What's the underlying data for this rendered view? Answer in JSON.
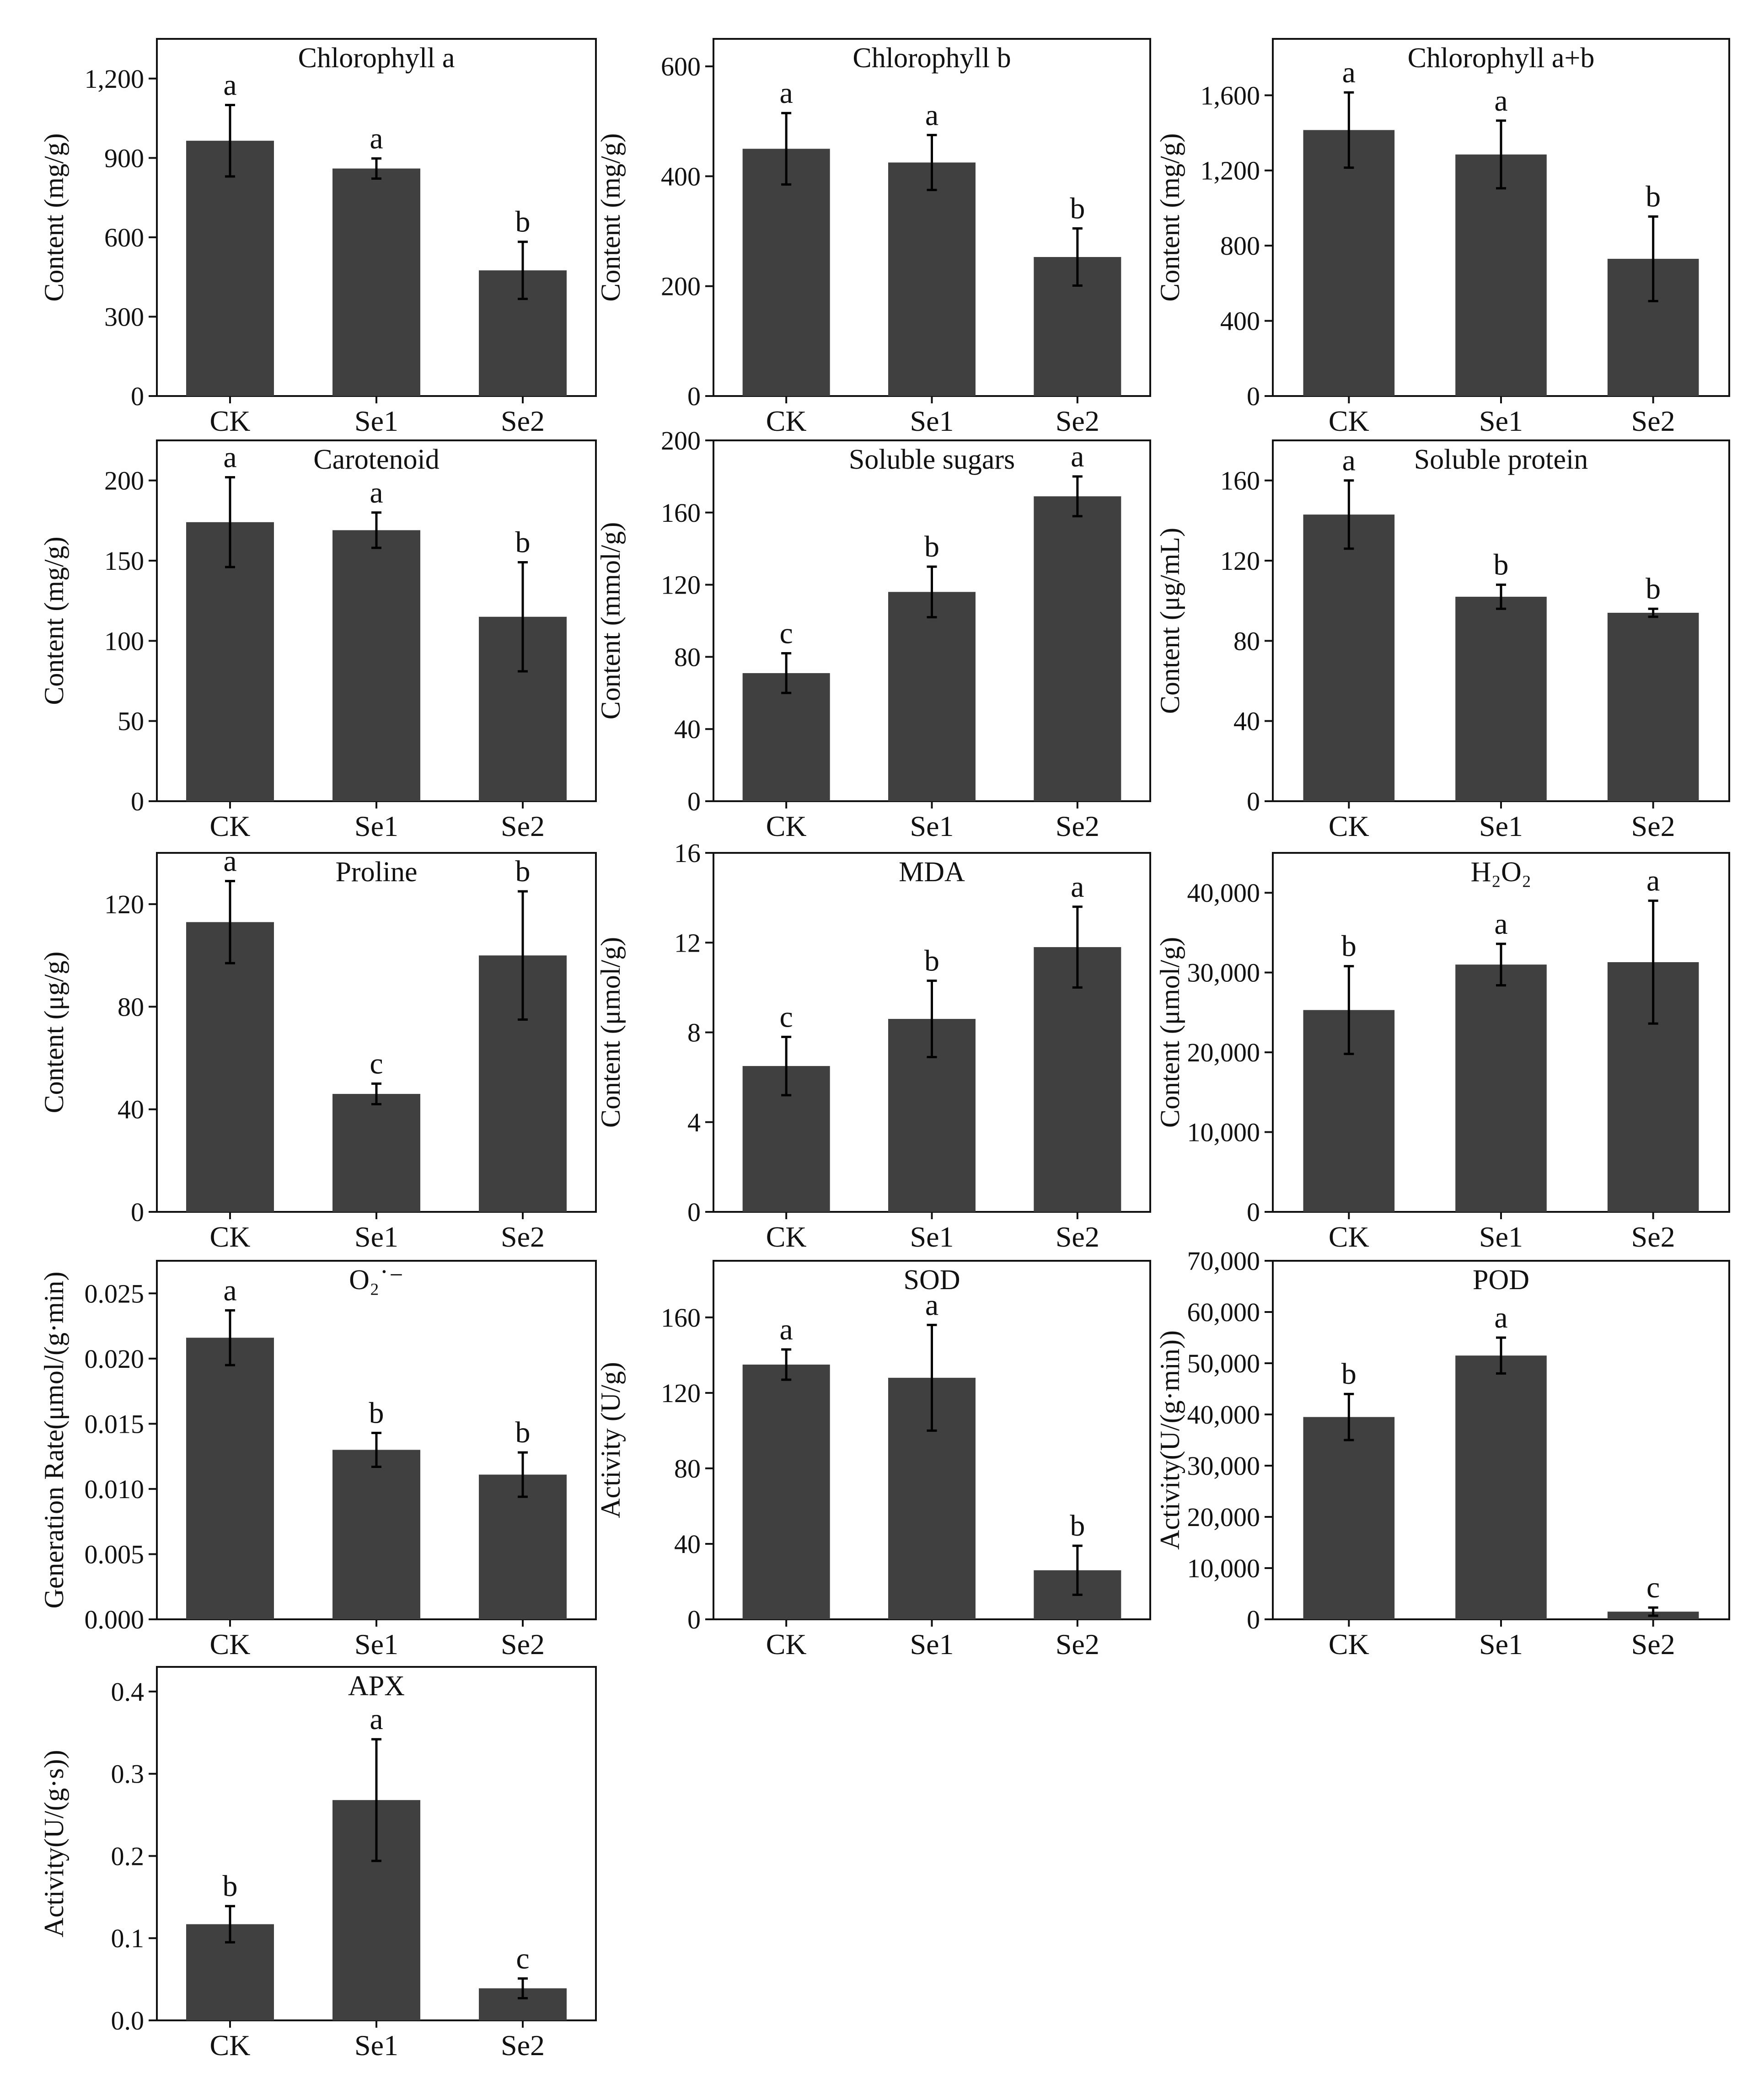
{
  "colors": {
    "bar": "#404040",
    "axis": "#111111",
    "background": "#ffffff"
  },
  "chart_data": [
    {
      "type": "bar",
      "title": "Chlorophyll a",
      "ylabel": "Content (mg/g)",
      "categories": [
        "CK",
        "Se1",
        "Se2"
      ],
      "values": [
        965,
        860,
        475
      ],
      "errors": [
        135,
        38,
        108
      ],
      "letters": [
        "a",
        "a",
        "b"
      ],
      "ylim": [
        0,
        1350
      ],
      "yticks": [
        "0",
        "300",
        "600",
        "900",
        "1,200"
      ],
      "ytick_values": [
        0,
        300,
        600,
        900,
        1200
      ]
    },
    {
      "type": "bar",
      "title": "Chlorophyll b",
      "ylabel": "Content (mg/g)",
      "categories": [
        "CK",
        "Se1",
        "Se2"
      ],
      "values": [
        450,
        425,
        253
      ],
      "errors": [
        65,
        50,
        52
      ],
      "letters": [
        "a",
        "a",
        "b"
      ],
      "ylim": [
        0,
        650
      ],
      "yticks": [
        "0",
        "200",
        "400",
        "600"
      ],
      "ytick_values": [
        0,
        200,
        400,
        600
      ]
    },
    {
      "type": "bar",
      "title": "Chlorophyll a+b",
      "ylabel": "Content (mg/g)",
      "categories": [
        "CK",
        "Se1",
        "Se2"
      ],
      "values": [
        1415,
        1285,
        730
      ],
      "errors": [
        200,
        180,
        225
      ],
      "letters": [
        "a",
        "a",
        "b"
      ],
      "ylim": [
        0,
        1900
      ],
      "yticks": [
        "0",
        "400",
        "800",
        "1,200",
        "1,600"
      ],
      "ytick_values": [
        0,
        400,
        800,
        1200,
        1600
      ]
    },
    {
      "type": "bar",
      "title": "Carotenoid",
      "ylabel": "Content (mg/g)",
      "categories": [
        "CK",
        "Se1",
        "Se2"
      ],
      "values": [
        174,
        169,
        115
      ],
      "errors": [
        28,
        11,
        34
      ],
      "letters": [
        "a",
        "a",
        "b"
      ],
      "ylim": [
        0,
        225
      ],
      "yticks": [
        "0",
        "50",
        "100",
        "150",
        "200"
      ],
      "ytick_values": [
        0,
        50,
        100,
        150,
        200
      ]
    },
    {
      "type": "bar",
      "title": "Soluble sugars",
      "ylabel": "Content (mmol/g)",
      "categories": [
        "CK",
        "Se1",
        "Se2"
      ],
      "values": [
        71,
        116,
        169
      ],
      "errors": [
        11,
        14,
        11
      ],
      "letters": [
        "c",
        "b",
        "a"
      ],
      "ylim": [
        0,
        200
      ],
      "yticks": [
        "0",
        "40",
        "80",
        "120",
        "160",
        "200"
      ],
      "ytick_values": [
        0,
        40,
        80,
        120,
        160,
        200
      ]
    },
    {
      "type": "bar",
      "title": "Soluble protein",
      "ylabel": "Content (μg/mL)",
      "categories": [
        "CK",
        "Se1",
        "Se2"
      ],
      "values": [
        143,
        102,
        94
      ],
      "errors": [
        17,
        6,
        2
      ],
      "letters": [
        "a",
        "b",
        "b"
      ],
      "ylim": [
        0,
        180
      ],
      "yticks": [
        "0",
        "40",
        "80",
        "120",
        "160"
      ],
      "ytick_values": [
        0,
        40,
        80,
        120,
        160
      ]
    },
    {
      "type": "bar",
      "title": "Proline",
      "ylabel": "Content (μg/g)",
      "categories": [
        "CK",
        "Se1",
        "Se2"
      ],
      "values": [
        113,
        46,
        100
      ],
      "errors": [
        16,
        4,
        25
      ],
      "letters": [
        "a",
        "c",
        "b"
      ],
      "ylim": [
        0,
        140
      ],
      "yticks": [
        "0",
        "40",
        "80",
        "120"
      ],
      "ytick_values": [
        0,
        40,
        80,
        120
      ]
    },
    {
      "type": "bar",
      "title": "MDA",
      "ylabel": "Content (μmol/g)",
      "categories": [
        "CK",
        "Se1",
        "Se2"
      ],
      "values": [
        6.5,
        8.6,
        11.8
      ],
      "errors": [
        1.3,
        1.7,
        1.8
      ],
      "letters": [
        "c",
        "b",
        "a"
      ],
      "ylim": [
        0,
        16
      ],
      "yticks": [
        "0",
        "4",
        "8",
        "12",
        "16"
      ],
      "ytick_values": [
        0,
        4,
        8,
        12,
        16
      ]
    },
    {
      "type": "bar",
      "title": "H₂O₂",
      "ylabel": "Content (μmol/g)",
      "categories": [
        "CK",
        "Se1",
        "Se2"
      ],
      "values": [
        25300,
        31000,
        31300
      ],
      "errors": [
        5500,
        2600,
        7700
      ],
      "letters": [
        "b",
        "a",
        "a"
      ],
      "ylim": [
        0,
        45000
      ],
      "yticks": [
        "0",
        "10,000",
        "20,000",
        "30,000",
        "40,000"
      ],
      "ytick_values": [
        0,
        10000,
        20000,
        30000,
        40000
      ]
    },
    {
      "type": "bar",
      "title": "O₂˙⁻",
      "ylabel": "Generation Rate(μmol/(g·min)",
      "categories": [
        "CK",
        "Se1",
        "Se2"
      ],
      "values": [
        0.0216,
        0.013,
        0.0111
      ],
      "errors": [
        0.0021,
        0.0013,
        0.0017
      ],
      "letters": [
        "a",
        "b",
        "b"
      ],
      "ylim": [
        0,
        0.0275
      ],
      "yticks": [
        "0.000",
        "0.005",
        "0.010",
        "0.015",
        "0.020",
        "0.025"
      ],
      "ytick_values": [
        0,
        0.005,
        0.01,
        0.015,
        0.02,
        0.025
      ]
    },
    {
      "type": "bar",
      "title": "SOD",
      "ylabel": "Activity (U/g)",
      "categories": [
        "CK",
        "Se1",
        "Se2"
      ],
      "values": [
        135,
        128,
        26
      ],
      "errors": [
        8,
        28,
        13
      ],
      "letters": [
        "a",
        "a",
        "b"
      ],
      "ylim": [
        0,
        190
      ],
      "yticks": [
        "0",
        "40",
        "80",
        "120",
        "160"
      ],
      "ytick_values": [
        0,
        40,
        80,
        120,
        160
      ]
    },
    {
      "type": "bar",
      "title": "POD",
      "ylabel": "Activity(U/(g·min))",
      "categories": [
        "CK",
        "Se1",
        "Se2"
      ],
      "values": [
        39500,
        51500,
        1500
      ],
      "errors": [
        4500,
        3500,
        800
      ],
      "letters": [
        "b",
        "a",
        "c"
      ],
      "ylim": [
        0,
        70000
      ],
      "yticks": [
        "0",
        "10,000",
        "20,000",
        "30,000",
        "40,000",
        "50,000",
        "60,000",
        "70,000"
      ],
      "ytick_values": [
        0,
        10000,
        20000,
        30000,
        40000,
        50000,
        60000,
        70000
      ]
    },
    {
      "type": "bar",
      "title": "APX",
      "ylabel": "Activity(U/(g·s))",
      "categories": [
        "CK",
        "Se1",
        "Se2"
      ],
      "values": [
        0.117,
        0.268,
        0.039
      ],
      "errors": [
        0.022,
        0.074,
        0.012
      ],
      "letters": [
        "b",
        "a",
        "c"
      ],
      "ylim": [
        0,
        0.43
      ],
      "yticks": [
        "0.0",
        "0.1",
        "0.2",
        "0.3",
        "0.4"
      ],
      "ytick_values": [
        0,
        0.1,
        0.2,
        0.3,
        0.4
      ]
    }
  ]
}
